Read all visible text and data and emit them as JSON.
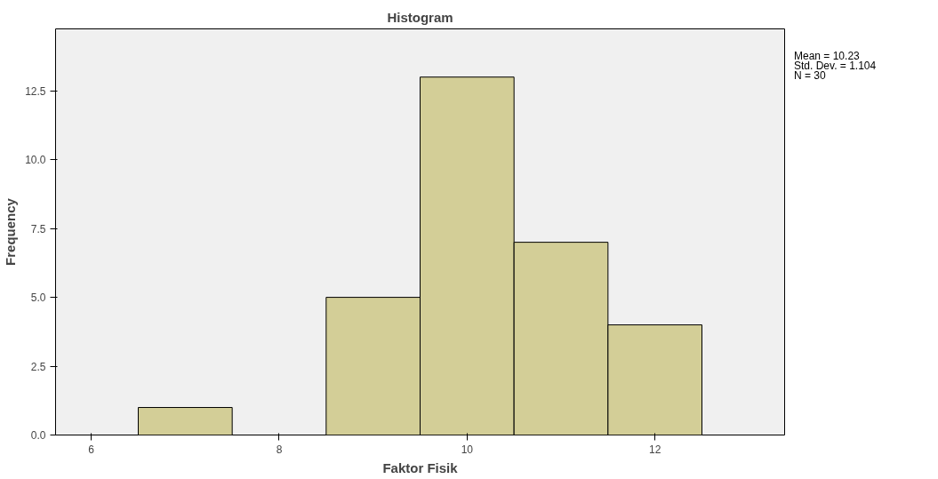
{
  "chart_data": {
    "type": "histogram",
    "title": "Histogram",
    "xlabel": "Faktor Fisik",
    "ylabel": "Frequency",
    "bins": [
      6.5,
      7.5,
      8.5,
      9.5,
      10.5,
      11.5,
      12.5
    ],
    "values": [
      1,
      0,
      5,
      13,
      7,
      4
    ],
    "color": "#d3ce97",
    "xlim": [
      5.62,
      13.38
    ],
    "ylim": [
      0,
      14.75
    ],
    "xticks": [
      6,
      8,
      10,
      12
    ],
    "yticks": [
      {
        "value": 0,
        "label": "0.0"
      },
      {
        "value": 2.5,
        "label": "2.5"
      },
      {
        "value": 5,
        "label": "5.0"
      },
      {
        "value": 7.5,
        "label": "7.5"
      },
      {
        "value": 10,
        "label": "10.0"
      },
      {
        "value": 12.5,
        "label": "12.5"
      }
    ],
    "grid": false,
    "annotations": [
      "Mean = 10.23",
      "Std. Dev. = 1.104",
      "N = 30"
    ]
  }
}
